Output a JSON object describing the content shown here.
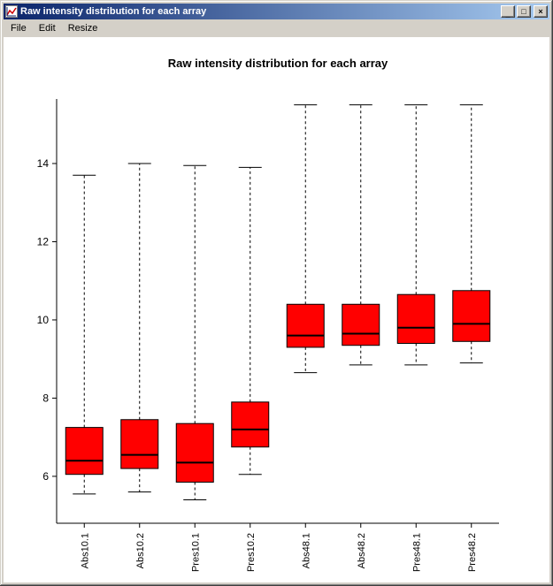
{
  "window": {
    "title": "Raw intensity distribution for each array",
    "controls": {
      "minimize_glyph": "_",
      "maximize_glyph": "□",
      "close_glyph": "×"
    },
    "titlebar_gradient": [
      "#0a246a",
      "#a6caf0"
    ]
  },
  "menu": {
    "items": [
      {
        "label": "File"
      },
      {
        "label": "Edit"
      },
      {
        "label": "Resize"
      }
    ]
  },
  "chart_data": {
    "type": "boxplot",
    "title": "Raw intensity distribution for each array",
    "categories": [
      "Abs10.1",
      "Abs10.2",
      "Pres10.1",
      "Pres10.2",
      "Abs48.1",
      "Abs48.2",
      "Pres48.1",
      "Pres48.2"
    ],
    "yticks": [
      6,
      8,
      10,
      12,
      14
    ],
    "ylim": [
      4.8,
      15.65
    ],
    "box_color": "#ff0000",
    "axis_color": "#000000",
    "legend": "none",
    "grid": false,
    "boxes": [
      {
        "label": "Abs10.1",
        "low": 5.55,
        "q1": 6.05,
        "median": 6.4,
        "q3": 7.25,
        "high": 13.7
      },
      {
        "label": "Abs10.2",
        "low": 5.6,
        "q1": 6.2,
        "median": 6.55,
        "q3": 7.45,
        "high": 14.0
      },
      {
        "label": "Pres10.1",
        "low": 5.4,
        "q1": 5.85,
        "median": 6.35,
        "q3": 7.35,
        "high": 13.95
      },
      {
        "label": "Pres10.2",
        "low": 6.05,
        "q1": 6.75,
        "median": 7.2,
        "q3": 7.9,
        "high": 13.9
      },
      {
        "label": "Abs48.1",
        "low": 8.65,
        "q1": 9.3,
        "median": 9.6,
        "q3": 10.4,
        "high": 15.5
      },
      {
        "label": "Abs48.2",
        "low": 8.85,
        "q1": 9.35,
        "median": 9.65,
        "q3": 10.4,
        "high": 15.5
      },
      {
        "label": "Pres48.1",
        "low": 8.85,
        "q1": 9.4,
        "median": 9.8,
        "q3": 10.65,
        "high": 15.5
      },
      {
        "label": "Pres48.2",
        "low": 8.9,
        "q1": 9.45,
        "median": 9.9,
        "q3": 10.75,
        "high": 15.5
      }
    ]
  }
}
